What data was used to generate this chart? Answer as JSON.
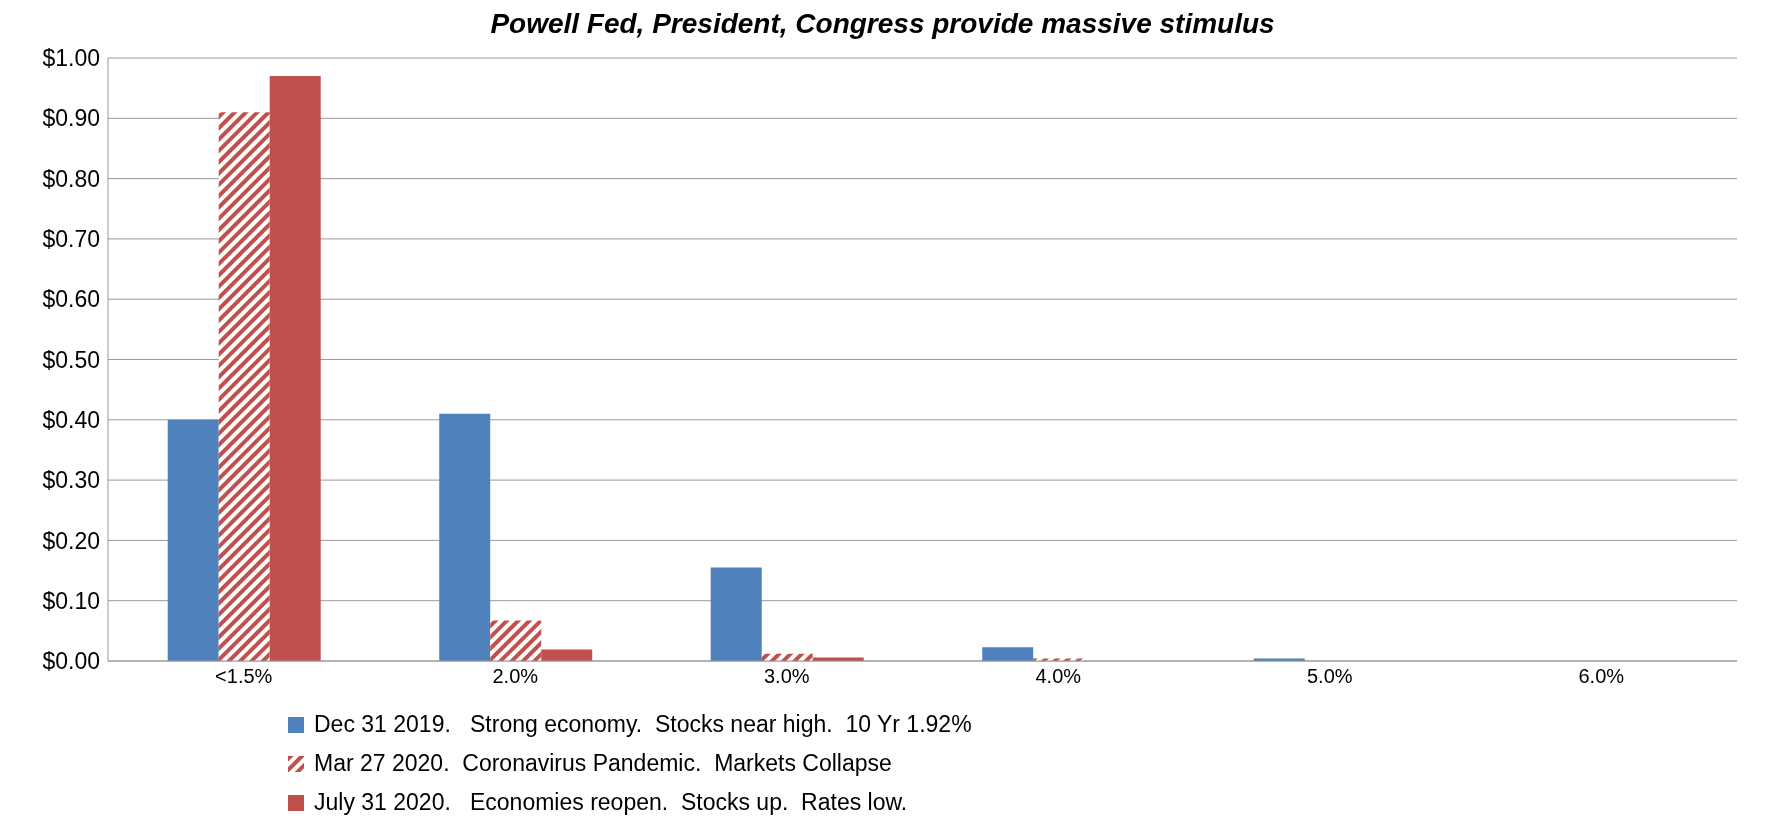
{
  "chart_data": {
    "type": "bar",
    "title": "Powell Fed, President, Congress provide massive stimulus",
    "categories": [
      "<1.5%",
      "2.0%",
      "3.0%",
      "4.0%",
      "5.0%",
      "6.0%"
    ],
    "series": [
      {
        "name": "Dec 31 2019.   Strong economy.  Stocks near high.  10 Yr 1.92%",
        "color": "#4f81bd",
        "values": [
          0.4,
          0.41,
          0.155,
          0.023,
          0.004,
          0
        ]
      },
      {
        "name": "Mar 27 2020.  Coronavirus Pandemic.  Markets Collapse",
        "color": "#c0504d",
        "values": [
          0.91,
          0.067,
          0.012,
          0.004,
          0,
          0
        ]
      },
      {
        "name": "July 31 2020.   Economies reopen.  Stocks up.  Rates low.",
        "color": "#c0504d",
        "values": [
          0.97,
          0.019,
          0.006,
          0,
          0,
          0
        ]
      }
    ],
    "ylim": [
      0,
      1
    ],
    "yticks": [
      {
        "value": 0,
        "label": "$0.00"
      },
      {
        "value": 0.1,
        "label": "$0.10"
      },
      {
        "value": 0.2,
        "label": "$0.20"
      },
      {
        "value": 0.3,
        "label": "$0.30"
      },
      {
        "value": 0.4,
        "label": "$0.40"
      },
      {
        "value": 0.5,
        "label": "$0.50"
      },
      {
        "value": 0.6,
        "label": "$0.60"
      },
      {
        "value": 0.7,
        "label": "$0.70"
      },
      {
        "value": 0.8,
        "label": "$0.80"
      },
      {
        "value": 0.9,
        "label": "$0.90"
      },
      {
        "value": 1,
        "label": "$1.00"
      }
    ],
    "grid": "y",
    "legend": "bottom"
  }
}
